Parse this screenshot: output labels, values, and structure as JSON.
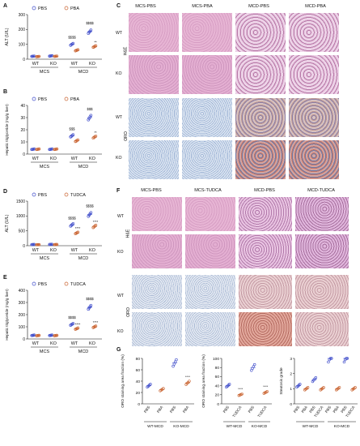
{
  "panels": {
    "A": {
      "label": "A",
      "ylabel": "ALT (U/L)",
      "legend": [
        "PBS",
        "PBA"
      ],
      "yticks": [
        "0",
        "100",
        "200",
        "300"
      ],
      "xticks": [
        "WT",
        "KO",
        "WT",
        "KO"
      ],
      "groups": [
        "MCS",
        "MCD"
      ],
      "sig": [
        "$$$$",
        "$$$$",
        "**"
      ]
    },
    "B": {
      "label": "B",
      "ylabel": "Hepatic triglyceride (mg/g liver)",
      "legend": [
        "PBS",
        "PBA"
      ],
      "yticks": [
        "0",
        "10",
        "20",
        "30",
        "40"
      ],
      "xticks": [
        "WT",
        "KO",
        "WT",
        "KO"
      ],
      "groups": [
        "MCS",
        "MCD"
      ],
      "sig": [
        "$$$",
        "$$$",
        "**"
      ]
    },
    "C": {
      "label": "C",
      "columns": [
        "MCS-PBS",
        "MCS-PBA",
        "MCD-PBS",
        "MCD-PBA"
      ],
      "rows": [
        "WT",
        "KO",
        "WT",
        "KO"
      ],
      "stains": [
        "H&E",
        "ORO"
      ]
    },
    "D": {
      "label": "D",
      "ylabel": "ALT (U/L)",
      "legend": [
        "PBS",
        "TUDCA"
      ],
      "yticks": [
        "0",
        "500",
        "1000",
        "1500"
      ],
      "xticks": [
        "WT",
        "KO",
        "WT",
        "KO"
      ],
      "groups": [
        "MCS",
        "MCD"
      ],
      "sig": [
        "$$$$",
        "$$$$",
        "****",
        "****"
      ]
    },
    "E": {
      "label": "E",
      "ylabel": "Hepatic triglyceride (mg/g liver)",
      "legend": [
        "PBS",
        "TUDCA"
      ],
      "yticks": [
        "0",
        "100",
        "200",
        "300",
        "400"
      ],
      "xticks": [
        "WT",
        "KO",
        "WT",
        "KO"
      ],
      "groups": [
        "MCS",
        "MCD"
      ],
      "sig": [
        "$$$$",
        "$$$$",
        "****",
        "****"
      ]
    },
    "F": {
      "label": "F",
      "columns": [
        "MCS-PBS",
        "MCS-TUDCA",
        "MCD-PBS",
        "MCD-TUDCA"
      ],
      "rows": [
        "WT",
        "KO",
        "WT",
        "KO"
      ],
      "stains": [
        "H&E",
        "ORO"
      ]
    },
    "G": {
      "label": "G",
      "g1": {
        "ylabel": "ORO staining area fraction (%)",
        "yticks": [
          "0",
          "20",
          "40",
          "60",
          "80"
        ],
        "xticks": [
          "PBS",
          "PBA",
          "PBS",
          "PBA"
        ],
        "groups": [
          "WT-MCD",
          "KO-MCD"
        ],
        "sig": "****"
      },
      "g2": {
        "ylabel": "ORO staining area fraction (%)",
        "yticks": [
          "0",
          "20",
          "40",
          "60",
          "80",
          "100"
        ],
        "xticks": [
          "PBS",
          "TUDCA",
          "PBS",
          "TUDCA"
        ],
        "groups": [
          "WT-MCD",
          "KO-MCD"
        ],
        "sig": [
          "****",
          "****"
        ]
      },
      "g3": {
        "ylabel": "Steatosis grade",
        "yticks": [
          "0",
          "1",
          "2",
          "3"
        ],
        "xticks": [
          "PBS",
          "PBA",
          "PBS",
          "TUDCA",
          "PBS",
          "PBA",
          "PBS",
          "TUDCA"
        ],
        "groups": [
          "WT-MCD",
          "KO-MCD"
        ]
      }
    }
  },
  "chart_data": [
    {
      "type": "scatter",
      "panel": "A",
      "ylabel": "ALT (U/L)",
      "ylim": [
        0,
        300
      ],
      "categories": [
        "MCS-WT",
        "MCS-KO",
        "MCD-WT",
        "MCD-KO"
      ],
      "series": [
        {
          "name": "PBS",
          "values": [
            20,
            22,
            100,
            185
          ]
        },
        {
          "name": "PBA",
          "values": [
            18,
            20,
            60,
            85
          ]
        }
      ]
    },
    {
      "type": "scatter",
      "panel": "B",
      "ylabel": "Hepatic triglyceride (mg/g liver)",
      "ylim": [
        0,
        40
      ],
      "categories": [
        "MCS-WT",
        "MCS-KO",
        "MCD-WT",
        "MCD-KO"
      ],
      "series": [
        {
          "name": "PBS",
          "values": [
            4,
            4,
            15,
            30
          ]
        },
        {
          "name": "PBA",
          "values": [
            4,
            4,
            11,
            14
          ]
        }
      ]
    },
    {
      "type": "scatter",
      "panel": "D",
      "ylabel": "ALT (U/L)",
      "ylim": [
        0,
        1500
      ],
      "categories": [
        "MCS-WT",
        "MCS-KO",
        "MCD-WT",
        "MCD-KO"
      ],
      "series": [
        {
          "name": "PBS",
          "values": [
            40,
            45,
            700,
            1050
          ]
        },
        {
          "name": "TUDCA",
          "values": [
            35,
            40,
            430,
            650
          ]
        }
      ]
    },
    {
      "type": "scatter",
      "panel": "E",
      "ylabel": "Hepatic triglyceride (mg/g liver)",
      "ylim": [
        0,
        400
      ],
      "categories": [
        "MCS-WT",
        "MCS-KO",
        "MCD-WT",
        "MCD-KO"
      ],
      "series": [
        {
          "name": "PBS",
          "values": [
            30,
            30,
            120,
            260
          ]
        },
        {
          "name": "TUDCA",
          "values": [
            28,
            28,
            85,
            100
          ]
        }
      ]
    },
    {
      "type": "scatter",
      "panel": "G1",
      "ylabel": "ORO staining area fraction (%)",
      "ylim": [
        0,
        80
      ],
      "categories": [
        "WT-MCD PBS",
        "WT-MCD PBA",
        "KO-MCD PBS",
        "KO-MCD PBA"
      ],
      "values": [
        32,
        25,
        72,
        37
      ]
    },
    {
      "type": "scatter",
      "panel": "G2",
      "ylabel": "ORO staining area fraction (%)",
      "ylim": [
        0,
        100
      ],
      "categories": [
        "WT-MCD PBS",
        "WT-MCD TUDCA",
        "KO-MCD PBS",
        "KO-MCD TUDCA"
      ],
      "values": [
        40,
        20,
        80,
        25
      ]
    },
    {
      "type": "scatter",
      "panel": "G3",
      "ylabel": "Steatosis grade",
      "ylim": [
        0,
        3
      ],
      "categories": [
        "WT-MCD PBS",
        "WT-MCD PBA",
        "WT-MCD PBS",
        "WT-MCD TUDCA",
        "KO-MCD PBS",
        "KO-MCD PBA",
        "KO-MCD PBS",
        "KO-MCD TUDCA"
      ],
      "values": [
        1.2,
        1,
        1.6,
        1,
        3,
        1,
        3,
        1
      ]
    }
  ]
}
